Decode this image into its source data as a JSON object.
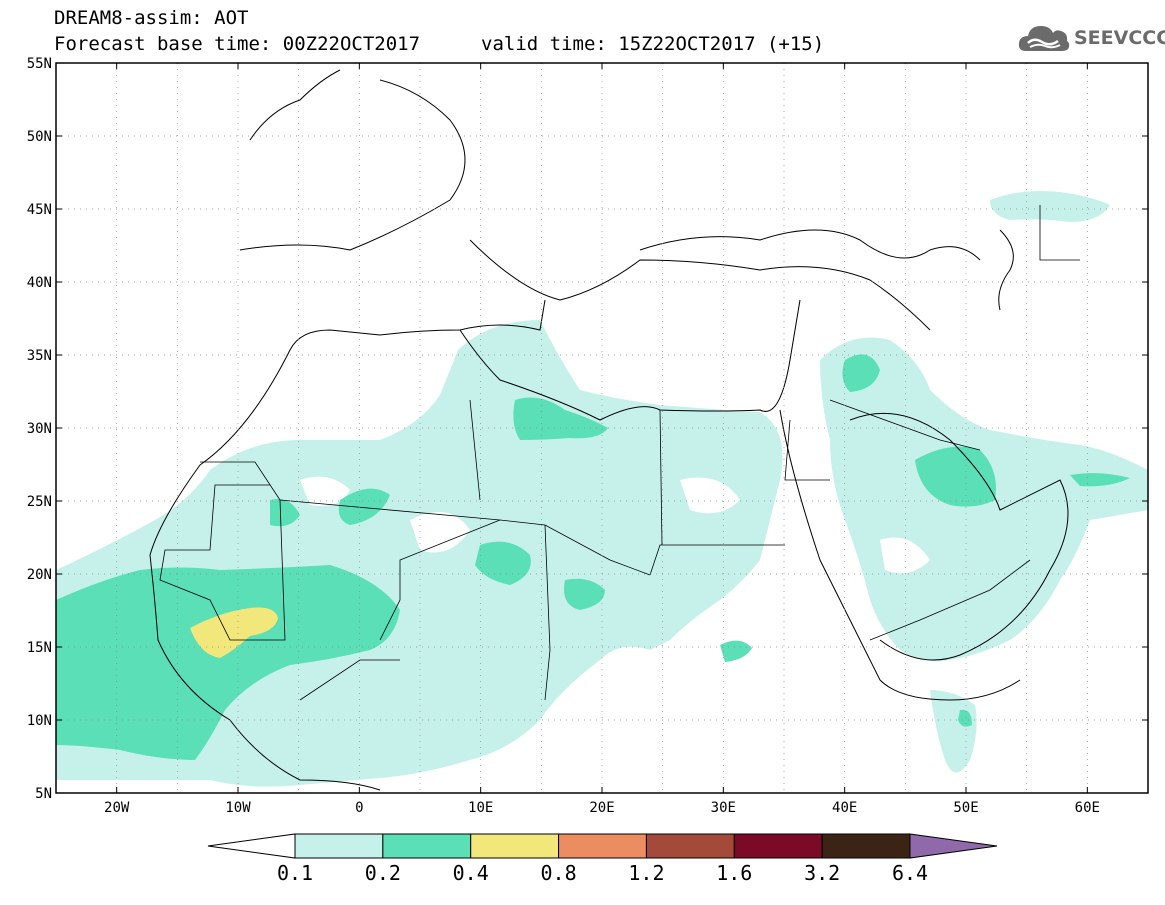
{
  "header": {
    "title": "DREAM8-assim: AOT",
    "base_time": "Forecast base time: 00Z22OCT2017",
    "valid_time": "valid time: 15Z22OCT2017 (+15)"
  },
  "logo": {
    "text": "SEEVCCC",
    "icon": "cloud-icon",
    "color": "#6b6b6b"
  },
  "map": {
    "lat_labels": [
      "55N",
      "50N",
      "45N",
      "40N",
      "35N",
      "30N",
      "25N",
      "20N",
      "15N",
      "10N",
      "5N"
    ],
    "lon_labels": [
      "20W",
      "10W",
      "0",
      "10E",
      "20E",
      "30E",
      "40E",
      "50E",
      "60E"
    ],
    "lon_range": [
      -25,
      65
    ],
    "lat_range": [
      5,
      55
    ],
    "grid": "dotted"
  },
  "colorbar": {
    "labels": [
      "0.1",
      "0.2",
      "0.4",
      "0.8",
      "1.2",
      "1.6",
      "3.2",
      "6.4"
    ],
    "colors": [
      "#ffffff",
      "#c6f1eb",
      "#5bdfb6",
      "#f2e77a",
      "#eb8c61",
      "#a34a3a",
      "#7a0a26",
      "#3c2415",
      "#8f69a9"
    ]
  }
}
